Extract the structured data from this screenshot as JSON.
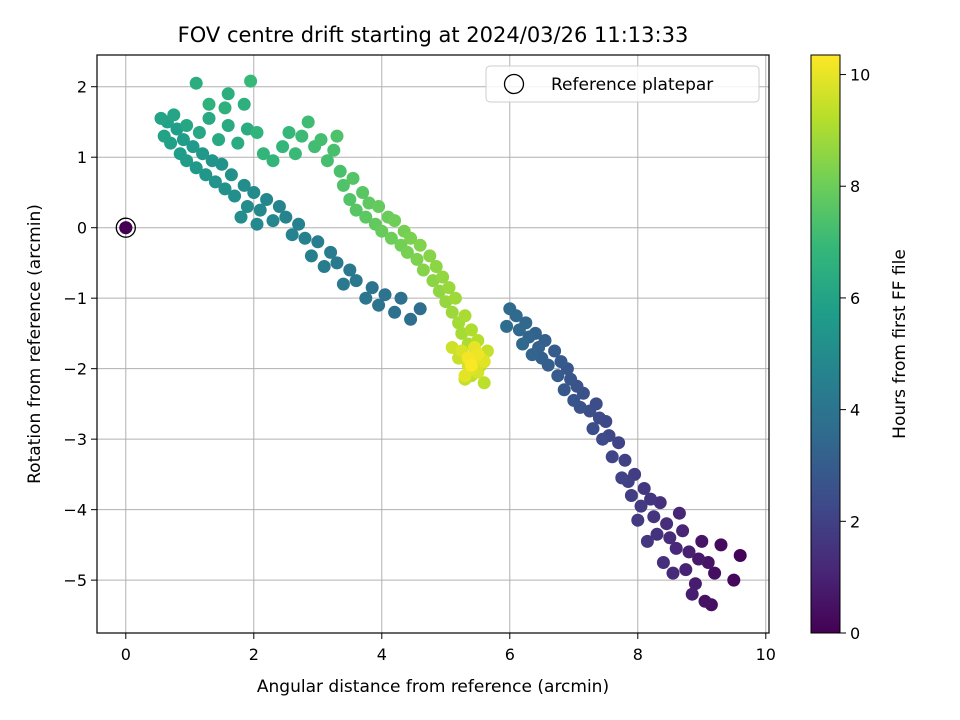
{
  "chart_data": {
    "type": "scatter",
    "title": "FOV centre drift starting at 2024/03/26 11:13:33",
    "xlabel": "Angular distance from reference (arcmin)",
    "ylabel": "Rotation from reference (arcmin)",
    "xlim": [
      -0.45,
      10.05
    ],
    "ylim": [
      -5.75,
      2.45
    ],
    "xticks": [
      0,
      2,
      4,
      6,
      8,
      10
    ],
    "yticks": [
      2,
      1,
      0,
      -1,
      -2,
      -3,
      -4,
      -5
    ],
    "xtick_labels": [
      "0",
      "2",
      "4",
      "6",
      "8",
      "10"
    ],
    "ytick_labels": [
      "2",
      "1",
      "0",
      "−1",
      "−2",
      "−3",
      "−4",
      "−5"
    ],
    "grid": true,
    "colormap": "viridis",
    "colorbar": {
      "label": "Hours from first FF file",
      "range": [
        0,
        10.35
      ],
      "ticks": [
        0,
        2,
        4,
        6,
        8,
        10
      ],
      "tick_labels": [
        "0",
        "2",
        "4",
        "6",
        "8",
        "10"
      ]
    },
    "legend": {
      "position": "top-right",
      "entries": [
        {
          "label": "Reference platepar",
          "marker": "open-circle",
          "color": "#000000"
        }
      ]
    },
    "reference_point": {
      "x": 0,
      "y": 0,
      "hours": 0
    },
    "points": [
      [
        0.0,
        0.0,
        0
      ],
      [
        9.6,
        -4.65,
        0.1
      ],
      [
        9.5,
        -5.0,
        0.2
      ],
      [
        9.3,
        -4.5,
        0.3
      ],
      [
        9.2,
        -4.9,
        0.4
      ],
      [
        9.15,
        -5.35,
        0.45
      ],
      [
        9.05,
        -5.3,
        0.5
      ],
      [
        9.1,
        -4.75,
        0.55
      ],
      [
        9.0,
        -4.45,
        0.6
      ],
      [
        8.95,
        -4.7,
        0.7
      ],
      [
        8.9,
        -5.05,
        0.8
      ],
      [
        8.85,
        -5.2,
        0.85
      ],
      [
        8.8,
        -4.6,
        0.9
      ],
      [
        8.75,
        -4.85,
        1.0
      ],
      [
        8.7,
        -4.3,
        1.05
      ],
      [
        8.65,
        -4.05,
        1.1
      ],
      [
        8.6,
        -4.55,
        1.2
      ],
      [
        8.55,
        -4.9,
        1.25
      ],
      [
        8.5,
        -4.4,
        1.3
      ],
      [
        8.45,
        -4.2,
        1.35
      ],
      [
        8.4,
        -4.75,
        1.4
      ],
      [
        8.35,
        -3.9,
        1.45
      ],
      [
        8.3,
        -4.35,
        1.5
      ],
      [
        8.25,
        -4.1,
        1.55
      ],
      [
        8.2,
        -3.85,
        1.6
      ],
      [
        8.15,
        -4.45,
        1.65
      ],
      [
        8.1,
        -3.7,
        1.7
      ],
      [
        8.05,
        -3.95,
        1.75
      ],
      [
        8.0,
        -4.15,
        1.8
      ],
      [
        7.95,
        -3.5,
        1.85
      ],
      [
        7.9,
        -3.8,
        1.9
      ],
      [
        7.85,
        -3.6,
        1.95
      ],
      [
        7.8,
        -3.3,
        2.0
      ],
      [
        7.75,
        -3.55,
        2.05
      ],
      [
        7.7,
        -3.05,
        2.1
      ],
      [
        7.6,
        -3.25,
        2.15
      ],
      [
        7.55,
        -2.95,
        2.2
      ],
      [
        7.5,
        -2.75,
        2.25
      ],
      [
        7.45,
        -3.0,
        2.3
      ],
      [
        7.4,
        -2.7,
        2.35
      ],
      [
        7.35,
        -2.5,
        2.4
      ],
      [
        7.3,
        -2.85,
        2.45
      ],
      [
        7.25,
        -2.6,
        2.5
      ],
      [
        7.15,
        -2.35,
        2.55
      ],
      [
        7.1,
        -2.55,
        2.6
      ],
      [
        7.05,
        -2.25,
        2.65
      ],
      [
        7.0,
        -2.45,
        2.7
      ],
      [
        6.95,
        -2.15,
        2.75
      ],
      [
        6.9,
        -2.0,
        2.8
      ],
      [
        6.85,
        -2.3,
        2.85
      ],
      [
        6.8,
        -1.9,
        2.9
      ],
      [
        6.75,
        -2.1,
        2.95
      ],
      [
        6.7,
        -1.75,
        3.0
      ],
      [
        6.6,
        -1.95,
        3.05
      ],
      [
        6.55,
        -1.6,
        3.1
      ],
      [
        6.5,
        -1.85,
        3.15
      ],
      [
        6.45,
        -1.7,
        3.2
      ],
      [
        6.4,
        -1.5,
        3.25
      ],
      [
        6.35,
        -1.8,
        3.3
      ],
      [
        6.3,
        -1.55,
        3.35
      ],
      [
        6.25,
        -1.35,
        3.4
      ],
      [
        6.2,
        -1.65,
        3.45
      ],
      [
        6.15,
        -1.45,
        3.5
      ],
      [
        6.1,
        -1.25,
        3.55
      ],
      [
        6.0,
        -1.15,
        3.6
      ],
      [
        5.95,
        -1.4,
        3.65
      ],
      [
        4.6,
        -1.15,
        3.7
      ],
      [
        4.45,
        -1.3,
        3.75
      ],
      [
        4.3,
        -1.0,
        3.8
      ],
      [
        4.2,
        -1.2,
        3.85
      ],
      [
        4.05,
        -0.95,
        3.9
      ],
      [
        3.95,
        -1.1,
        3.95
      ],
      [
        3.85,
        -0.85,
        4.0
      ],
      [
        3.75,
        -1.0,
        4.05
      ],
      [
        3.6,
        -0.75,
        4.1
      ],
      [
        3.5,
        -0.6,
        4.15
      ],
      [
        3.4,
        -0.8,
        4.2
      ],
      [
        3.3,
        -0.5,
        4.25
      ],
      [
        3.2,
        -0.35,
        4.3
      ],
      [
        3.1,
        -0.55,
        4.35
      ],
      [
        3.0,
        -0.2,
        4.4
      ],
      [
        2.9,
        -0.4,
        4.45
      ],
      [
        2.8,
        -0.15,
        4.5
      ],
      [
        2.7,
        0.05,
        4.55
      ],
      [
        2.6,
        -0.1,
        4.6
      ],
      [
        2.5,
        0.15,
        4.65
      ],
      [
        2.4,
        0.3,
        4.7
      ],
      [
        2.3,
        0.1,
        4.75
      ],
      [
        2.2,
        0.4,
        4.8
      ],
      [
        2.1,
        0.25,
        4.85
      ],
      [
        2.05,
        0.05,
        4.9
      ],
      [
        2.0,
        0.5,
        4.95
      ],
      [
        1.9,
        0.3,
        5.0
      ],
      [
        1.85,
        0.6,
        5.05
      ],
      [
        1.8,
        0.15,
        5.1
      ],
      [
        1.7,
        0.45,
        5.15
      ],
      [
        1.65,
        0.75,
        5.2
      ],
      [
        1.55,
        0.55,
        5.25
      ],
      [
        1.5,
        0.9,
        5.3
      ],
      [
        1.4,
        0.65,
        5.35
      ],
      [
        1.35,
        0.95,
        5.4
      ],
      [
        1.25,
        0.75,
        5.45
      ],
      [
        1.2,
        1.05,
        5.5
      ],
      [
        1.1,
        0.85,
        5.55
      ],
      [
        1.05,
        1.15,
        5.6
      ],
      [
        0.95,
        0.95,
        5.65
      ],
      [
        0.9,
        1.25,
        5.7
      ],
      [
        0.85,
        1.05,
        5.75
      ],
      [
        0.8,
        1.4,
        5.8
      ],
      [
        0.7,
        1.2,
        5.85
      ],
      [
        0.65,
        1.5,
        5.9
      ],
      [
        0.6,
        1.3,
        5.95
      ],
      [
        0.55,
        1.55,
        6.0
      ],
      [
        0.75,
        1.6,
        6.05
      ],
      [
        0.95,
        1.45,
        6.1
      ],
      [
        1.15,
        1.35,
        6.15
      ],
      [
        1.3,
        1.55,
        6.2
      ],
      [
        1.45,
        1.25,
        6.25
      ],
      [
        1.6,
        1.45,
        6.3
      ],
      [
        1.75,
        1.2,
        6.35
      ],
      [
        1.9,
        1.4,
        6.4
      ],
      [
        1.1,
        2.05,
        6.45
      ],
      [
        1.6,
        1.9,
        6.5
      ],
      [
        1.85,
        1.75,
        6.55
      ],
      [
        1.55,
        1.7,
        6.6
      ],
      [
        1.3,
        1.75,
        6.65
      ],
      [
        2.05,
        1.35,
        6.7
      ],
      [
        2.15,
        1.05,
        6.75
      ],
      [
        2.3,
        0.95,
        6.8
      ],
      [
        2.45,
        1.15,
        6.85
      ],
      [
        2.55,
        1.35,
        6.9
      ],
      [
        1.95,
        2.08,
        6.95
      ],
      [
        2.65,
        1.05,
        7.0
      ],
      [
        2.75,
        1.3,
        7.05
      ],
      [
        2.85,
        1.5,
        7.1
      ],
      [
        2.95,
        1.15,
        7.15
      ],
      [
        3.05,
        1.25,
        7.2
      ],
      [
        3.15,
        0.95,
        7.25
      ],
      [
        3.25,
        1.1,
        7.3
      ],
      [
        3.35,
        0.8,
        7.35
      ],
      [
        3.3,
        1.3,
        7.4
      ],
      [
        3.4,
        0.6,
        7.45
      ],
      [
        3.5,
        0.4,
        7.5
      ],
      [
        3.55,
        0.7,
        7.55
      ],
      [
        3.6,
        0.25,
        7.6
      ],
      [
        3.7,
        0.5,
        7.65
      ],
      [
        3.75,
        0.15,
        7.7
      ],
      [
        3.8,
        0.35,
        7.75
      ],
      [
        3.9,
        0.05,
        7.8
      ],
      [
        3.95,
        0.3,
        7.85
      ],
      [
        4.0,
        -0.05,
        7.9
      ],
      [
        4.1,
        0.15,
        7.95
      ],
      [
        4.15,
        -0.15,
        8.0
      ],
      [
        4.2,
        0.1,
        8.05
      ],
      [
        4.3,
        -0.25,
        8.1
      ],
      [
        4.35,
        -0.05,
        8.15
      ],
      [
        4.4,
        -0.35,
        8.2
      ],
      [
        4.45,
        -0.15,
        8.25
      ],
      [
        4.55,
        -0.45,
        8.3
      ],
      [
        4.6,
        -0.25,
        8.35
      ],
      [
        4.65,
        -0.6,
        8.4
      ],
      [
        4.75,
        -0.4,
        8.45
      ],
      [
        4.8,
        -0.75,
        8.5
      ],
      [
        4.85,
        -0.55,
        8.55
      ],
      [
        4.9,
        -0.9,
        8.6
      ],
      [
        4.95,
        -0.7,
        8.65
      ],
      [
        5.0,
        -1.05,
        8.7
      ],
      [
        5.05,
        -0.85,
        8.75
      ],
      [
        5.1,
        -1.2,
        8.8
      ],
      [
        5.15,
        -1.0,
        8.85
      ],
      [
        5.2,
        -1.35,
        8.9
      ],
      [
        5.25,
        -1.5,
        8.95
      ],
      [
        5.3,
        -1.25,
        9.0
      ],
      [
        5.35,
        -1.65,
        9.05
      ],
      [
        5.4,
        -1.45,
        9.1
      ],
      [
        5.45,
        -1.8,
        9.15
      ],
      [
        5.5,
        -1.6,
        9.2
      ],
      [
        5.55,
        -1.95,
        9.25
      ],
      [
        5.6,
        -2.2,
        9.3
      ],
      [
        5.4,
        -2.1,
        9.35
      ],
      [
        5.3,
        -2.15,
        9.4
      ],
      [
        5.65,
        -1.75,
        9.45
      ],
      [
        5.2,
        -1.85,
        9.5
      ],
      [
        5.45,
        -1.9,
        9.55
      ],
      [
        5.1,
        -1.7,
        9.6
      ],
      [
        5.35,
        -1.95,
        9.65
      ],
      [
        5.5,
        -2.05,
        9.7
      ],
      [
        5.25,
        -1.75,
        9.75
      ],
      [
        5.55,
        -1.85,
        9.8
      ],
      [
        5.4,
        -2.0,
        9.85
      ],
      [
        5.6,
        -1.9,
        9.9
      ],
      [
        5.3,
        -2.1,
        9.95
      ],
      [
        5.45,
        -1.7,
        10.0
      ],
      [
        5.5,
        -1.8,
        10.1
      ],
      [
        5.35,
        -1.85,
        10.2
      ],
      [
        5.4,
        -1.95,
        10.3
      ]
    ]
  }
}
